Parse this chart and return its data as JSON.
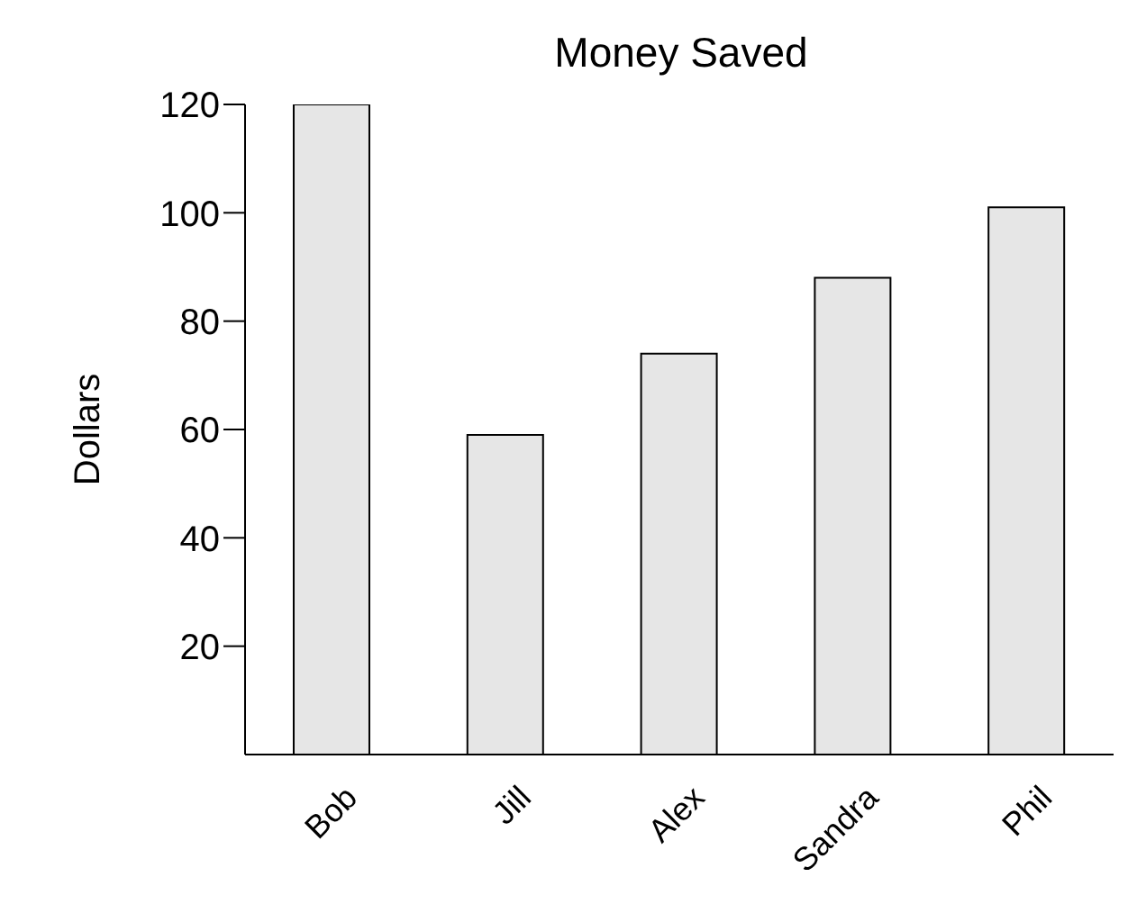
{
  "chart_data": {
    "type": "bar",
    "title": "Money Saved",
    "ylabel": "Dollars",
    "categories": [
      "Bob",
      "Jill",
      "Alex",
      "Sandra",
      "Phil"
    ],
    "values": [
      120,
      59,
      74,
      88,
      101
    ],
    "color": "#e6e6e6",
    "ylim": [
      0,
      120
    ],
    "yticks": [
      20,
      40,
      60,
      80,
      100,
      120
    ],
    "grid": false
  }
}
